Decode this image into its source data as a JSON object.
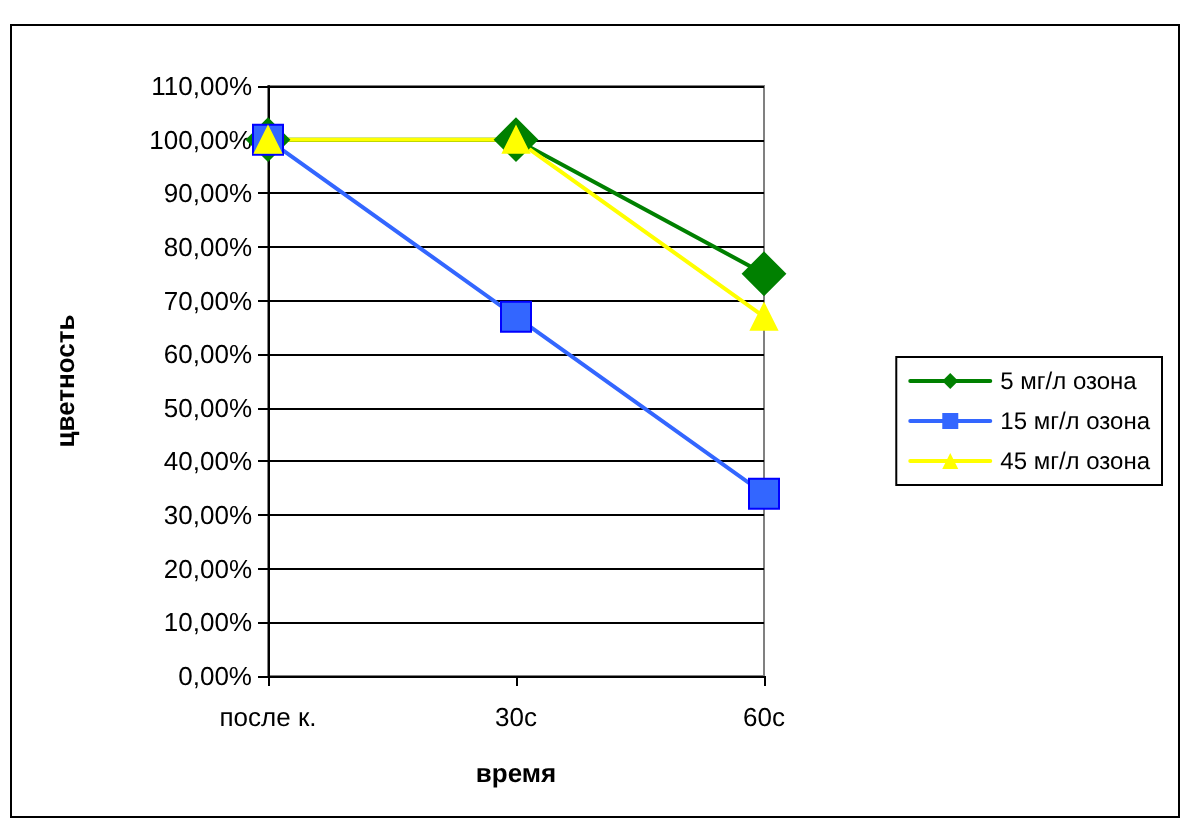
{
  "chart_data": {
    "type": "line",
    "xlabel": "время",
    "ylabel": "цветность",
    "categories": [
      "после к.",
      "30с",
      "60с"
    ],
    "series": [
      {
        "name": "5 мг/л озона",
        "color": "#008000",
        "marker": "diamond",
        "values": [
          100,
          100,
          75
        ]
      },
      {
        "name": "15 мг/л озона",
        "color": "#3366ff",
        "marker": "square",
        "values": [
          100,
          67,
          34
        ]
      },
      {
        "name": "45 мг/л озона",
        "color": "#ffff00",
        "marker": "triangle",
        "values": [
          100,
          100,
          67
        ]
      }
    ],
    "ylim": [
      0,
      110
    ],
    "yticks": [
      {
        "value": 0,
        "label": "0,00%"
      },
      {
        "value": 10,
        "label": "10,00%"
      },
      {
        "value": 20,
        "label": "20,00%"
      },
      {
        "value": 30,
        "label": "30,00%"
      },
      {
        "value": 40,
        "label": "40,00%"
      },
      {
        "value": 50,
        "label": "50,00%"
      },
      {
        "value": 60,
        "label": "60,00%"
      },
      {
        "value": 70,
        "label": "70,00%"
      },
      {
        "value": 80,
        "label": "80,00%"
      },
      {
        "value": 90,
        "label": "90,00%"
      },
      {
        "value": 100,
        "label": "100,00%"
      },
      {
        "value": 110,
        "label": "110,00%"
      }
    ],
    "grid": "y",
    "legend": "right",
    "line_style": "solid"
  }
}
